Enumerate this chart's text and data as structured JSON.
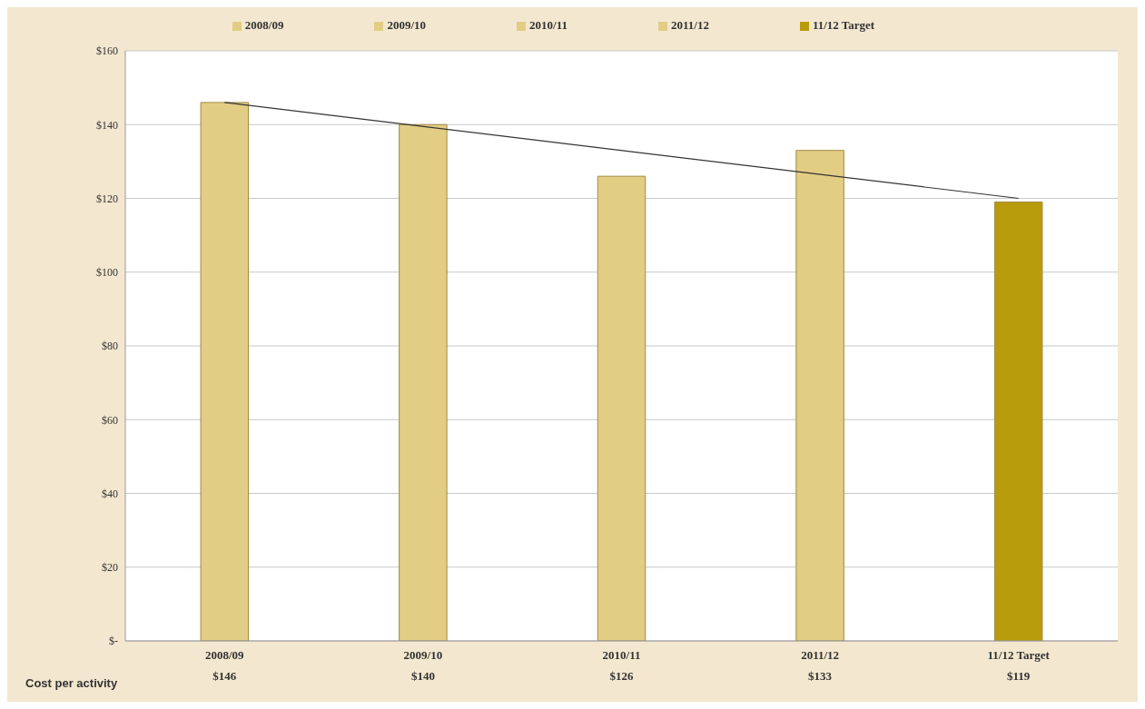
{
  "chart_data": {
    "type": "bar",
    "categories": [
      "2008/09",
      "2009/10",
      "2010/11",
      "2011/12",
      "11/12 Target"
    ],
    "series": [
      {
        "name": "2008/09",
        "color": "#e2cd85",
        "values": [
          146,
          null,
          null,
          null,
          null
        ],
        "value_labels": [
          "$146",
          null,
          null,
          null,
          null
        ]
      },
      {
        "name": "2009/10",
        "color": "#e2cd85",
        "values": [
          null,
          140,
          null,
          null,
          null
        ],
        "value_labels": [
          null,
          "$140",
          null,
          null,
          null
        ]
      },
      {
        "name": "2010/11",
        "color": "#e2cd85",
        "values": [
          null,
          null,
          126,
          null,
          null
        ],
        "value_labels": [
          null,
          null,
          "$126",
          null,
          null
        ]
      },
      {
        "name": "2011/12",
        "color": "#e2cd85",
        "values": [
          null,
          null,
          null,
          133,
          null
        ],
        "value_labels": [
          null,
          null,
          null,
          "$133",
          null
        ]
      },
      {
        "name": "11/12 Target",
        "color": "#b89c0c",
        "values": [
          null,
          null,
          null,
          null,
          119
        ],
        "value_labels": [
          null,
          null,
          null,
          null,
          "$119"
        ]
      },
      {
        "type": "line",
        "color": "#333333",
        "x": [
          "2008/09",
          "11/12 Target"
        ],
        "values": [
          146,
          120
        ]
      }
    ],
    "ylim": [
      0,
      160
    ],
    "yticks": [
      {
        "value": 0,
        "label": "$-"
      },
      {
        "value": 20,
        "label": "$20"
      },
      {
        "value": 40,
        "label": "$40"
      },
      {
        "value": 60,
        "label": "$60"
      },
      {
        "value": 80,
        "label": "$80"
      },
      {
        "value": 100,
        "label": "$100"
      },
      {
        "value": 120,
        "label": "$120"
      },
      {
        "value": 140,
        "label": "$140"
      },
      {
        "value": 160,
        "label": "$160"
      }
    ],
    "grid": "y",
    "legend": "top",
    "annotations": [
      "Cost per activity"
    ]
  }
}
